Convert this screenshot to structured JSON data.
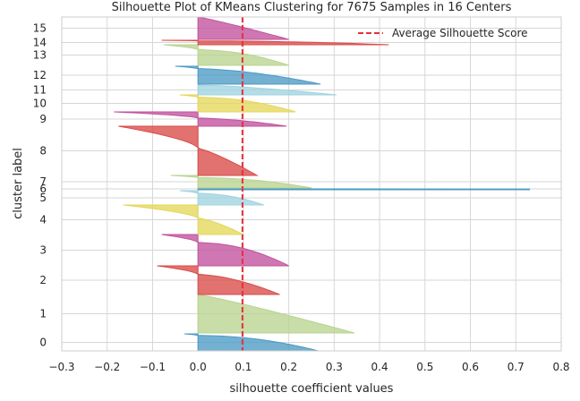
{
  "chart_data": {
    "type": "area",
    "title": "Silhouette Plot of KMeans Clustering for 7675 Samples in 16 Centers",
    "xlabel": "silhouette coefficient values",
    "ylabel": "cluster label",
    "xlim": [
      -0.3,
      0.8
    ],
    "x_ticks": [
      "−0.3",
      "−0.2",
      "−0.1",
      "0.0",
      "0.1",
      "0.2",
      "0.3",
      "0.4",
      "0.5",
      "0.6",
      "0.7",
      "0.8"
    ],
    "grid": true,
    "average_silhouette_score": 0.098,
    "legend": {
      "label": "Average Silhouette Score",
      "position": "top-right",
      "color": "#e8303b"
    },
    "clusters": [
      {
        "label": "0",
        "color": "#4c9ac4",
        "min": -0.03,
        "max": 0.265
      },
      {
        "label": "1",
        "color": "#b8d48f",
        "min": 0.0,
        "max": 0.345
      },
      {
        "label": "2",
        "color": "#d94a48",
        "min": -0.09,
        "max": 0.18
      },
      {
        "label": "3",
        "color": "#c2519c",
        "min": -0.08,
        "max": 0.2
      },
      {
        "label": "4",
        "color": "#e4d75a",
        "min": -0.165,
        "max": 0.1
      },
      {
        "label": "5",
        "color": "#9fd3e0",
        "min": -0.04,
        "max": 0.145
      },
      {
        "label": "6",
        "color": "#4c9ac4",
        "min": 0.0,
        "max": 0.73
      },
      {
        "label": "7",
        "color": "#b8d48f",
        "min": -0.06,
        "max": 0.25
      },
      {
        "label": "8",
        "color": "#d94a48",
        "min": -0.175,
        "max": 0.13
      },
      {
        "label": "9",
        "color": "#c2519c",
        "min": -0.185,
        "max": 0.195
      },
      {
        "label": "10",
        "color": "#e4d75a",
        "min": -0.04,
        "max": 0.215
      },
      {
        "label": "11",
        "color": "#9fd3e0",
        "min": 0.0,
        "max": 0.305
      },
      {
        "label": "12",
        "color": "#4c9ac4",
        "min": -0.05,
        "max": 0.27
      },
      {
        "label": "13",
        "color": "#b8d48f",
        "min": -0.075,
        "max": 0.2
      },
      {
        "label": "14",
        "color": "#d94a48",
        "min": -0.08,
        "max": 0.42
      },
      {
        "label": "15",
        "color": "#c2519c",
        "min": 0.0,
        "max": 0.2
      }
    ]
  }
}
